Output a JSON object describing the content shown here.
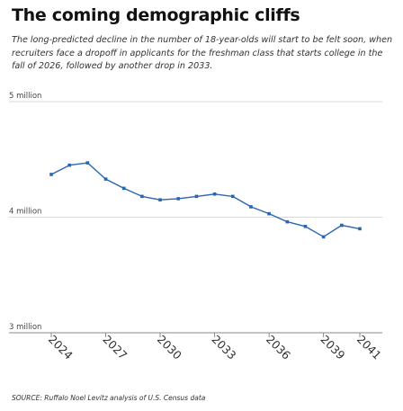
{
  "title": "The coming demographic cliffs",
  "subtitle": "The long-predicted decline in the number of 18-year-olds will start to be felt soon, when recruiters face a dropoff in applicants for the freshman class that starts college in the fall of 2026, followed by another drop in 2033.",
  "source": "SOURCE: Ruffalo Noel Levitz analysis of U.S. Census data",
  "colors": {
    "line": "#2a66b0",
    "gridline": "#d9d9d9",
    "axis": "#888888"
  },
  "chart_data": {
    "type": "line",
    "title": "The coming demographic cliffs",
    "xlabel": "",
    "ylabel": "",
    "x": [
      2024,
      2025,
      2026,
      2027,
      2028,
      2029,
      2030,
      2031,
      2032,
      2033,
      2034,
      2035,
      2036,
      2037,
      2038,
      2039,
      2040,
      2041
    ],
    "series": [
      {
        "values": [
          4.37,
          4.45,
          4.47,
          4.33,
          4.25,
          4.18,
          4.15,
          4.16,
          4.18,
          4.2,
          4.18,
          4.09,
          4.03,
          3.96,
          3.92,
          3.83,
          3.93,
          3.9
        ]
      }
    ],
    "xlim": [
      2024,
      2041
    ],
    "ylim": [
      3,
      5
    ],
    "y_ticks": [
      {
        "value": 5,
        "label": "5 million"
      },
      {
        "value": 4,
        "label": "4 million"
      },
      {
        "value": 3,
        "label": "3 million"
      }
    ],
    "x_ticks": [
      {
        "value": 2024,
        "label": "2024"
      },
      {
        "value": 2027,
        "label": "2027"
      },
      {
        "value": 2030,
        "label": "2030"
      },
      {
        "value": 2033,
        "label": "2033"
      },
      {
        "value": 2036,
        "label": "2036"
      },
      {
        "value": 2039,
        "label": "2039"
      },
      {
        "value": 2041,
        "label": "2041"
      }
    ],
    "grid": true,
    "legend": "none"
  }
}
